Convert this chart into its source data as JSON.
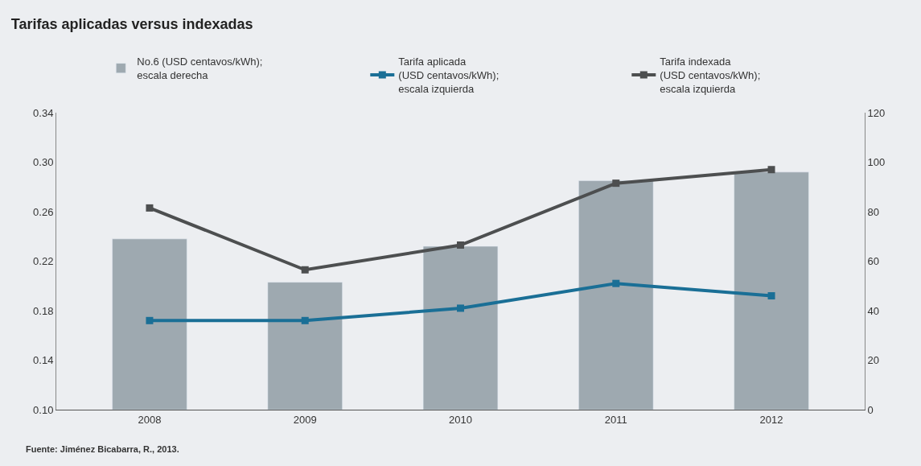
{
  "chart_data": {
    "type": "line",
    "title": "Tarifas aplicadas versus indexadas",
    "categories": [
      "2008",
      "2009",
      "2010",
      "2011",
      "2012"
    ],
    "series": [
      {
        "name": "No.6 (USD centavos/kWh); escala derecha",
        "type": "bar",
        "axis": "y2",
        "color": "#9ea9b0",
        "values": [
          69,
          51.5,
          66,
          92.5,
          96
        ]
      },
      {
        "name": "Tarifa aplicada (USD centavos/kWh); escala izquierda",
        "color": "#1a6f96",
        "values": [
          0.172,
          0.172,
          0.182,
          0.202,
          0.192
        ]
      },
      {
        "name": "Tarifa indexada (USD centavos/kWh); escala izquierda",
        "color": "#4d4f50",
        "values": [
          0.263,
          0.213,
          0.233,
          0.283,
          0.294
        ]
      }
    ],
    "ylim": [
      0.1,
      0.34
    ],
    "yticks": [
      {
        "value": 0.1,
        "label": "0.10"
      },
      0.14,
      0.18,
      0.22,
      0.26,
      {
        "value": 0.3,
        "label": "0.30"
      },
      0.34
    ],
    "y2lim": [
      0,
      120
    ],
    "y2ticks": [
      0,
      20,
      40,
      60,
      80,
      100,
      120
    ],
    "marker": "square",
    "legend": "top",
    "grid": false,
    "annotations": [
      "Fuente: Jiménez Bicabarra, R., 2013."
    ]
  }
}
